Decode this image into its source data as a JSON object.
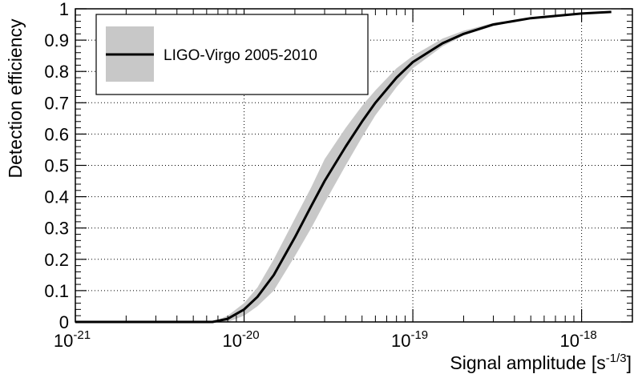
{
  "chart_data": {
    "type": "line",
    "title": "",
    "xlabel": "Signal amplitude [s",
    "xlabel_exponent": "-1/3",
    "xlabel_suffix": "]",
    "ylabel": "Detection efficiency",
    "x_scale": "log",
    "xlim": [
      1e-21,
      2e-18
    ],
    "ylim": [
      0,
      1
    ],
    "grid": true,
    "legend_position": "top-left",
    "x_ticks": [
      {
        "base": "10",
        "exp": "-21"
      },
      {
        "base": "10",
        "exp": "-20"
      },
      {
        "base": "10",
        "exp": "-19"
      },
      {
        "base": "10",
        "exp": "-18"
      }
    ],
    "y_ticks": [
      "0",
      "0.1",
      "0.2",
      "0.3",
      "0.4",
      "0.5",
      "0.6",
      "0.7",
      "0.8",
      "0.9",
      "1"
    ],
    "colors": {
      "line": "#000000",
      "band": "#c8c8c8"
    },
    "series": [
      {
        "name": "LIGO-Virgo 2005-2010",
        "x": [
          6.5e-21,
          8e-21,
          1e-20,
          1.2e-20,
          1.5e-20,
          2e-20,
          2.5e-20,
          3e-20,
          4e-20,
          5e-20,
          6e-20,
          8e-20,
          1e-19,
          1.5e-19,
          2e-19,
          3e-19,
          5e-19,
          1e-18,
          1.5e-18
        ],
        "y": [
          0.0,
          0.01,
          0.04,
          0.08,
          0.15,
          0.27,
          0.37,
          0.45,
          0.56,
          0.64,
          0.7,
          0.78,
          0.83,
          0.89,
          0.92,
          0.95,
          0.97,
          0.985,
          0.99
        ],
        "band_lower": [
          0.0,
          0.0,
          0.02,
          0.05,
          0.1,
          0.21,
          0.3,
          0.38,
          0.5,
          0.59,
          0.66,
          0.75,
          0.81,
          0.88,
          0.915,
          0.945,
          0.968,
          0.985,
          0.99
        ],
        "band_upper": [
          0.0,
          0.02,
          0.06,
          0.11,
          0.2,
          0.33,
          0.43,
          0.52,
          0.62,
          0.69,
          0.74,
          0.81,
          0.85,
          0.905,
          0.93,
          0.955,
          0.972,
          0.985,
          0.99
        ]
      }
    ]
  }
}
